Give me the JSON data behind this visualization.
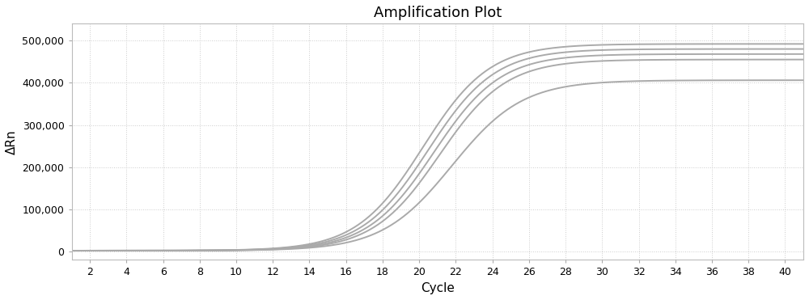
{
  "title": "Amplification Plot",
  "xlabel": "Cycle",
  "ylabel": "ΔRn",
  "xlim": [
    1,
    41
  ],
  "ylim": [
    -20000,
    540000
  ],
  "xticks": [
    2,
    4,
    6,
    8,
    10,
    12,
    14,
    16,
    18,
    20,
    22,
    24,
    26,
    28,
    30,
    32,
    34,
    36,
    38,
    40
  ],
  "yticks": [
    0,
    100000,
    200000,
    300000,
    400000,
    500000
  ],
  "ytick_labels": [
    "0",
    "100,000",
    "200,000",
    "300,000",
    "400,000",
    "500,000"
  ],
  "curves": [
    {
      "L": 492000,
      "k": 0.55,
      "x0": 20.2,
      "color": "#aaaaaa",
      "lw": 1.4
    },
    {
      "L": 480000,
      "k": 0.55,
      "x0": 20.5,
      "color": "#aaaaaa",
      "lw": 1.4
    },
    {
      "L": 468000,
      "k": 0.55,
      "x0": 20.8,
      "color": "#aaaaaa",
      "lw": 1.4
    },
    {
      "L": 455000,
      "k": 0.55,
      "x0": 21.1,
      "color": "#aaaaaa",
      "lw": 1.4
    },
    {
      "L": 406000,
      "k": 0.52,
      "x0": 21.8,
      "color": "#aaaaaa",
      "lw": 1.4
    }
  ],
  "bg_color": "#ffffff",
  "grid_color": "#cccccc",
  "grid_style": ":",
  "title_fontsize": 13,
  "label_fontsize": 11,
  "tick_fontsize": 9,
  "figure_width": 10.0,
  "figure_height": 3.71,
  "dpi": 100
}
